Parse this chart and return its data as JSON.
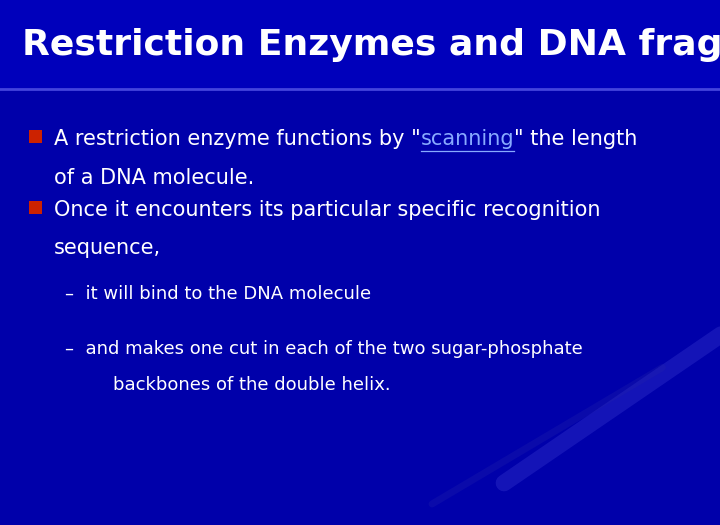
{
  "title": "Restriction Enzymes and DNA fragments",
  "title_color": "#FFFFFF",
  "title_fontsize": 26,
  "background_color": "#0000AA",
  "bullet_color": "#CC2200",
  "text_color": "#FFFFFF",
  "link_color": "#88AAFF",
  "bullet1_before": "A restriction enzyme functions by \"",
  "bullet1_link": "scanning",
  "bullet1_after": "\" the length",
  "bullet1_line2": "of a DNA molecule.",
  "bullet2_line1": "Once it encounters its particular specific recognition",
  "bullet2_line2": "sequence,",
  "sub1": "–  it will bind to the DNA molecule",
  "sub2_line1": "–  and makes one cut in each of the two sugar-phosphate",
  "sub2_line2": "    backbones of the double helix.",
  "bullet_fontsize": 15,
  "sub_fontsize": 13,
  "figsize": [
    7.2,
    5.25
  ],
  "dpi": 100
}
